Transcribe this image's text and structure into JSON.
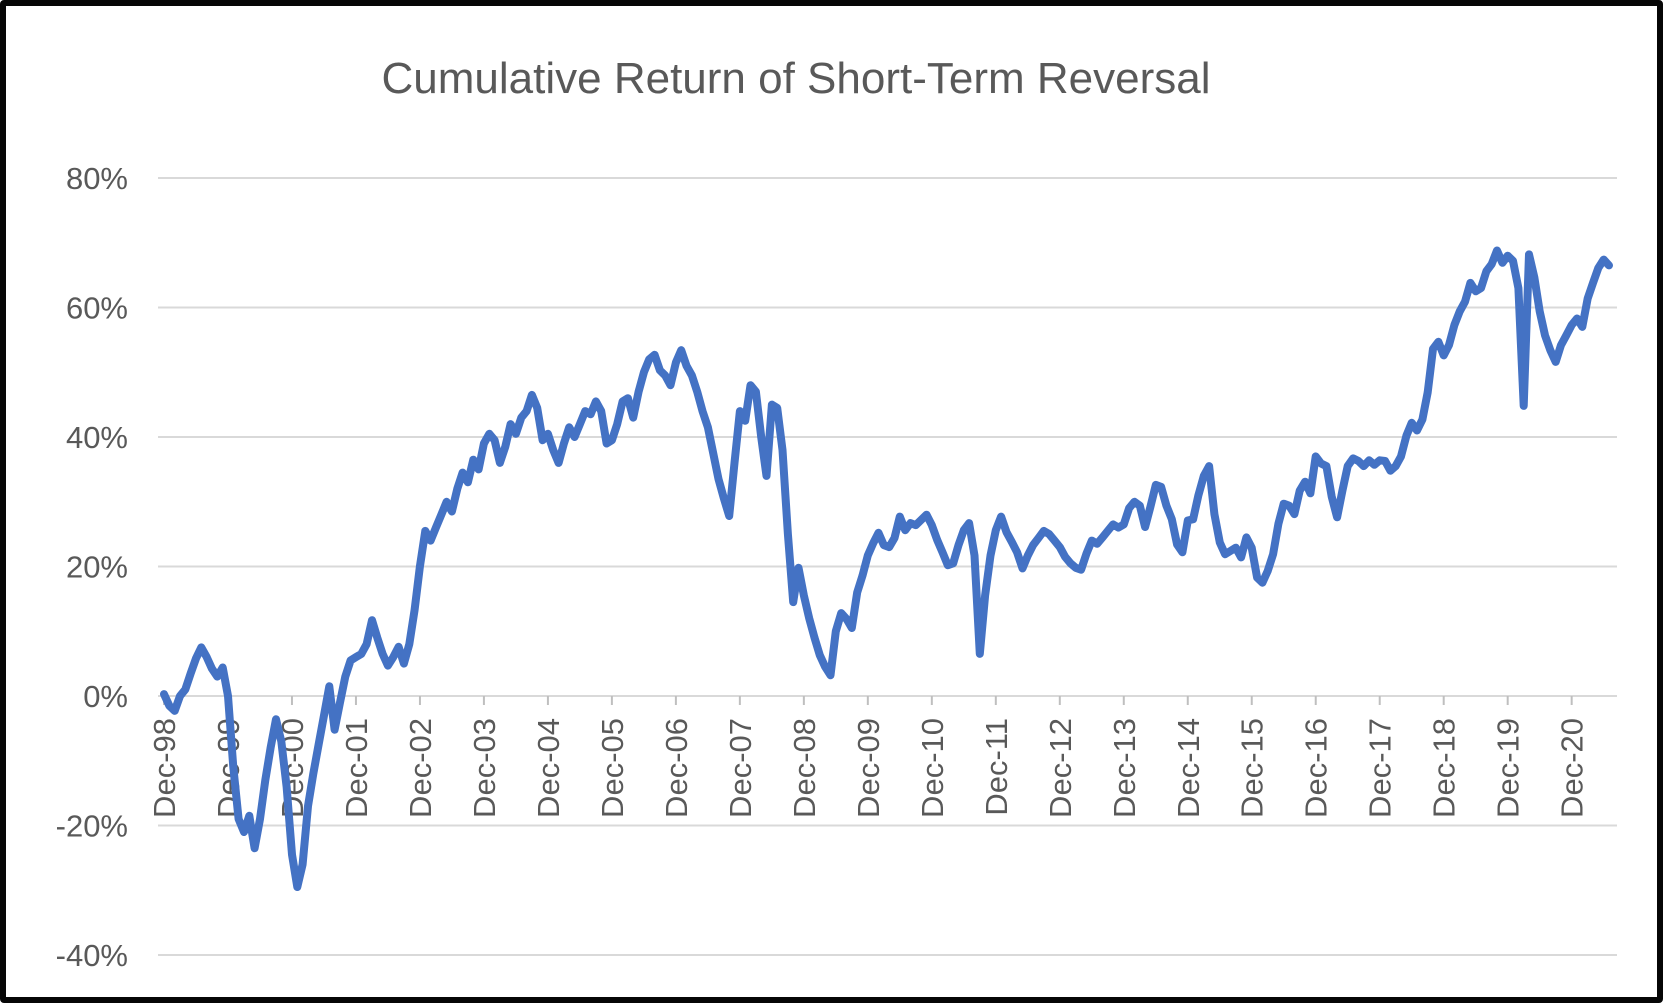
{
  "chart_data": {
    "type": "line",
    "title": "Cumulative Return of Short-Term Reversal",
    "series_name": "Cumulative return",
    "x_frequency": "monthly",
    "x_start": "1998-12",
    "x_end": "2021-07",
    "x_tick_labels": [
      "Dec-98",
      "Dec-99",
      "Dec-00",
      "Dec-01",
      "Dec-02",
      "Dec-03",
      "Dec-04",
      "Dec-05",
      "Dec-06",
      "Dec-07",
      "Dec-08",
      "Dec-09",
      "Dec-10",
      "Dec-11",
      "Dec-12",
      "Dec-13",
      "Dec-14",
      "Dec-15",
      "Dec-16",
      "Dec-17",
      "Dec-18",
      "Dec-19",
      "Dec-20"
    ],
    "x_tick_every_n_points": 12,
    "y_ticks": [
      {
        "value": 80,
        "label": "80%"
      },
      {
        "value": 60,
        "label": "60%"
      },
      {
        "value": 40,
        "label": "40%"
      },
      {
        "value": 20,
        "label": "20%"
      },
      {
        "value": 0,
        "label": "0%"
      },
      {
        "value": -20,
        "label": "-20%"
      },
      {
        "value": -40,
        "label": "-40%"
      }
    ],
    "ylim": [
      -40,
      80
    ],
    "grid": "horizontal",
    "legend": "none",
    "line_color": "#4472C4",
    "text_color": "#595959",
    "grid_color": "#D9D9D9",
    "axis_color": "#BFBFBF",
    "values_pct": [
      0.3,
      -1.5,
      -2.3,
      0.0,
      1.0,
      3.5,
      5.8,
      7.5,
      6.0,
      4.2,
      3.0,
      4.4,
      0.0,
      -11.0,
      -19.0,
      -21.0,
      -18.5,
      -23.5,
      -19.0,
      -13.0,
      -8.0,
      -3.6,
      -7.0,
      -14.0,
      -24.5,
      -29.5,
      -26.0,
      -17.0,
      -12.0,
      -7.5,
      -3.0,
      1.5,
      -5.2,
      -1.0,
      3.0,
      5.5,
      6.0,
      6.5,
      8.0,
      11.7,
      9.0,
      6.5,
      4.7,
      6.0,
      7.6,
      5.0,
      8.0,
      13.3,
      20.0,
      25.5,
      24.0,
      26.0,
      28.0,
      30.0,
      28.5,
      32.0,
      34.5,
      33.0,
      36.5,
      35.0,
      39.0,
      40.5,
      39.5,
      36.0,
      38.5,
      42.0,
      40.5,
      43.0,
      44.0,
      46.5,
      44.5,
      39.5,
      40.5,
      38.0,
      36.0,
      39.0,
      41.5,
      40.0,
      42.0,
      44.0,
      43.5,
      45.5,
      44.0,
      39.0,
      39.5,
      42.0,
      45.5,
      46.0,
      43.0,
      47.0,
      50.0,
      52.0,
      52.7,
      50.3,
      49.5,
      48.0,
      51.5,
      53.4,
      51.0,
      49.5,
      47.0,
      44.0,
      41.5,
      37.5,
      33.5,
      30.5,
      27.8,
      36.0,
      44.0,
      42.5,
      48.0,
      47.0,
      40.0,
      34.0,
      45.0,
      44.5,
      38.0,
      25.0,
      14.5,
      19.8,
      15.5,
      12.0,
      9.0,
      6.3,
      4.5,
      3.2,
      10.0,
      12.8,
      11.9,
      10.5,
      16.0,
      18.6,
      21.7,
      23.6,
      25.2,
      23.3,
      23.0,
      24.4,
      27.7,
      25.6,
      26.7,
      26.4,
      27.2,
      28.0,
      26.4,
      24.1,
      22.2,
      20.2,
      20.5,
      23.3,
      25.6,
      26.7,
      21.7,
      6.5,
      15.5,
      21.7,
      25.6,
      27.7,
      25.3,
      23.8,
      22.2,
      19.7,
      21.7,
      23.3,
      24.4,
      25.5,
      25.0,
      24.0,
      23.0,
      21.5,
      20.5,
      19.8,
      19.5,
      22.0,
      24.0,
      23.5,
      24.5,
      25.5,
      26.5,
      26.0,
      26.5,
      29.0,
      30.0,
      29.4,
      26.1,
      29.2,
      32.6,
      32.3,
      29.4,
      27.3,
      23.4,
      22.2,
      27.1,
      27.3,
      31.0,
      34.0,
      35.5,
      28.1,
      23.7,
      21.9,
      22.4,
      22.9,
      21.4,
      24.5,
      22.9,
      18.3,
      17.5,
      19.3,
      21.9,
      26.6,
      29.7,
      29.4,
      28.1,
      31.7,
      33.1,
      31.3,
      37.0,
      35.9,
      35.5,
      30.8,
      27.6,
      31.7,
      35.5,
      36.7,
      36.3,
      35.5,
      36.4,
      35.7,
      36.4,
      36.3,
      34.8,
      35.5,
      37.0,
      40.2,
      42.2,
      41.0,
      42.7,
      46.9,
      53.6,
      54.7,
      52.6,
      54.2,
      57.3,
      59.4,
      60.9,
      63.8,
      62.5,
      63.0,
      65.6,
      66.7,
      68.8,
      66.9,
      68.0,
      67.2,
      63.0,
      44.8,
      68.2,
      64.6,
      59.4,
      55.7,
      53.4,
      51.6,
      54.2,
      55.7,
      57.3,
      58.3,
      57.0,
      61.4,
      63.8,
      66.1,
      67.4,
      66.5
    ]
  }
}
